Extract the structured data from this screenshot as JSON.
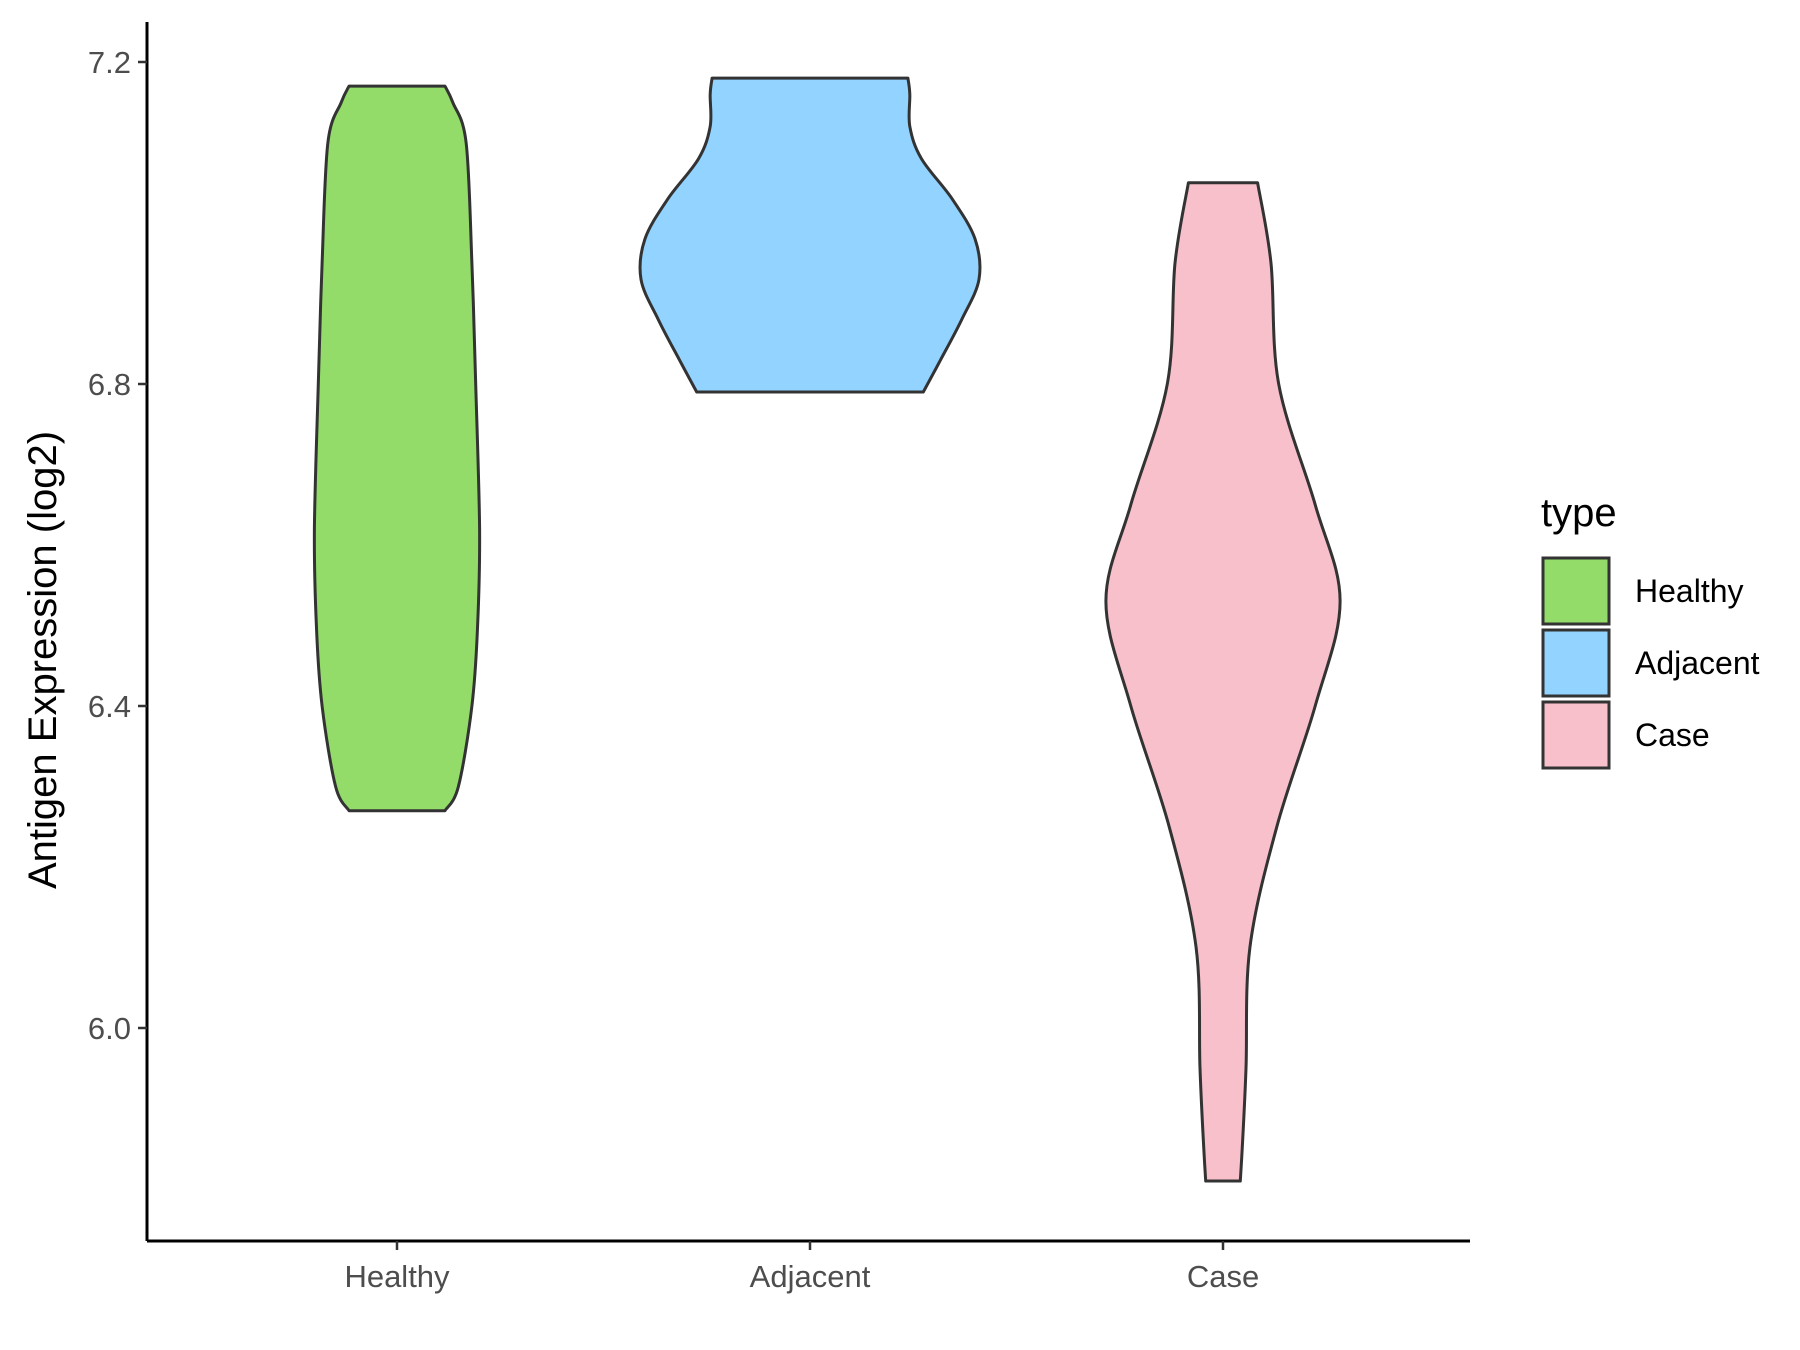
{
  "chart_data": {
    "type": "violin",
    "title": "",
    "xlabel": "",
    "ylabel": "Antigen Expression (log2)",
    "ylim": [
      5.74,
      7.25
    ],
    "yticks": [
      "6.0",
      "6.4",
      "6.8",
      "7.2"
    ],
    "ytick_values": [
      6.0,
      6.4,
      6.8,
      7.2
    ],
    "grid": false,
    "categories": [
      "Healthy",
      "Adjacent",
      "Case"
    ],
    "legend": {
      "title": "type",
      "placement": "right",
      "entries": [
        "Healthy",
        "Adjacent",
        "Case"
      ]
    },
    "series": [
      {
        "category": "Healthy",
        "color": "#93DC6A",
        "min": 6.27,
        "max": 7.17,
        "density_y": [
          6.27,
          6.3,
          6.4,
          6.5,
          6.62,
          6.8,
          6.95,
          7.1,
          7.15,
          7.17
        ],
        "density_width": [
          0.25,
          0.32,
          0.39,
          0.42,
          0.43,
          0.41,
          0.39,
          0.36,
          0.29,
          0.25
        ]
      },
      {
        "category": "Adjacent",
        "color": "#93D3FF",
        "min": 6.79,
        "max": 7.18,
        "density_y": [
          6.79,
          6.83,
          6.88,
          6.93,
          6.98,
          7.03,
          7.08,
          7.12,
          7.16,
          7.18
        ],
        "density_width": [
          0.59,
          0.68,
          0.79,
          0.88,
          0.86,
          0.74,
          0.58,
          0.52,
          0.52,
          0.51
        ]
      },
      {
        "category": "Case",
        "color": "#F7C0CB",
        "min": 5.81,
        "max": 7.05,
        "density_y": [
          5.81,
          5.85,
          5.95,
          6.1,
          6.25,
          6.4,
          6.53,
          6.65,
          6.8,
          6.95,
          7.05
        ],
        "density_width": [
          0.09,
          0.1,
          0.12,
          0.14,
          0.28,
          0.48,
          0.61,
          0.48,
          0.29,
          0.25,
          0.18
        ]
      }
    ]
  }
}
